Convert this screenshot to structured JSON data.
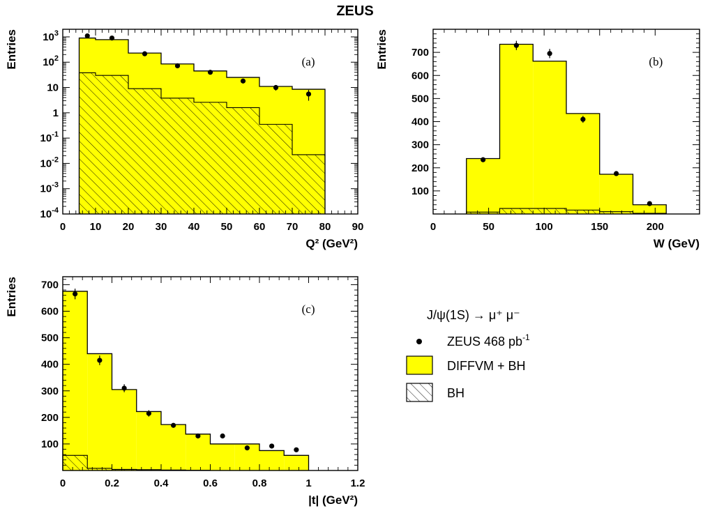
{
  "title": "ZEUS",
  "colors": {
    "mc_fill": "#ffff00",
    "outline": "#000000",
    "hatch": "#000000",
    "marker": "#000000"
  },
  "legend": {
    "header": "J/ψ(1S) → μ⁺ μ⁻",
    "items": [
      {
        "kind": "marker",
        "label": "ZEUS 468 pb",
        "sup": "-1"
      },
      {
        "kind": "fill",
        "label": "DIFFVM + BH"
      },
      {
        "kind": "hatch",
        "label": "BH"
      }
    ]
  },
  "chart_data": [
    {
      "type": "bar",
      "panel_label": "(a)",
      "xlabel": "Q² (GeV²)",
      "ylabel": "Entries",
      "yscale": "log",
      "xlim": [
        0,
        90
      ],
      "ylim": [
        0.0001,
        2000
      ],
      "xticks": [
        0,
        10,
        20,
        30,
        40,
        50,
        60,
        70,
        80,
        90
      ],
      "yticks": [
        {
          "v": 0.0001,
          "base": "10",
          "exp": "-4"
        },
        {
          "v": 0.001,
          "base": "10",
          "exp": "-3"
        },
        {
          "v": 0.01,
          "base": "10",
          "exp": "-2"
        },
        {
          "v": 0.1,
          "base": "10",
          "exp": "-1"
        },
        {
          "v": 1,
          "base": "1",
          "exp": ""
        },
        {
          "v": 10,
          "base": "10",
          "exp": ""
        },
        {
          "v": 100,
          "base": "10",
          "exp": "2"
        },
        {
          "v": 1000,
          "base": "10",
          "exp": "3"
        }
      ],
      "bin_edges": [
        5,
        10,
        20,
        30,
        40,
        50,
        60,
        70,
        80
      ],
      "series": [
        {
          "name": "DIFFVM + BH",
          "values": [
            900,
            780,
            230,
            85,
            45,
            25,
            11,
            8.5
          ]
        },
        {
          "name": "BH",
          "values": [
            38,
            30,
            9,
            3.8,
            2.6,
            1.6,
            0.35,
            0.022
          ]
        },
        {
          "name": "ZEUS 468 pb-1",
          "x": [
            7.5,
            15,
            25,
            35,
            45,
            55,
            65,
            75
          ],
          "values": [
            1100,
            900,
            215,
            72,
            40,
            18,
            10,
            5.5
          ],
          "err": [
            0,
            0,
            0,
            0,
            0,
            0,
            2.5,
            2.5
          ]
        }
      ]
    },
    {
      "type": "bar",
      "panel_label": "(b)",
      "xlabel": "W (GeV)",
      "ylabel": "Entries",
      "yscale": "linear",
      "xlim": [
        0,
        240
      ],
      "ylim": [
        0,
        800
      ],
      "xticks": [
        0,
        50,
        100,
        150,
        200
      ],
      "yticks": [
        100,
        200,
        300,
        400,
        500,
        600,
        700
      ],
      "bin_edges": [
        30,
        60,
        90,
        120,
        150,
        180,
        210
      ],
      "series": [
        {
          "name": "DIFFVM + BH",
          "values": [
            240,
            735,
            662,
            435,
            172,
            40
          ]
        },
        {
          "name": "BH",
          "values": [
            8,
            24,
            24,
            17,
            10,
            3
          ]
        },
        {
          "name": "ZEUS 468 pb-1",
          "x": [
            45,
            75,
            105,
            135,
            165,
            195
          ],
          "values": [
            235,
            730,
            695,
            410,
            175,
            45
          ],
          "err": [
            10,
            20,
            20,
            15,
            6,
            0
          ]
        }
      ]
    },
    {
      "type": "bar",
      "panel_label": "(c)",
      "xlabel": "|t| (GeV²)",
      "ylabel": "Entries",
      "yscale": "linear",
      "xlim": [
        0,
        1.2
      ],
      "ylim": [
        0,
        730
      ],
      "xticks": [
        0,
        0.2,
        0.4,
        0.6,
        0.8,
        1,
        1.2
      ],
      "yticks": [
        100,
        200,
        300,
        400,
        500,
        600,
        700
      ],
      "bin_edges": [
        0,
        0.1,
        0.2,
        0.3,
        0.4,
        0.5,
        0.6,
        0.7,
        0.8,
        0.9,
        1.0
      ],
      "series": [
        {
          "name": "DIFFVM + BH",
          "values": [
            675,
            440,
            305,
            222,
            173,
            137,
            100,
            100,
            75,
            57
          ]
        },
        {
          "name": "BH",
          "values": [
            57,
            8,
            4,
            3,
            2,
            1,
            0,
            0,
            0,
            0
          ]
        },
        {
          "name": "ZEUS 468 pb-1",
          "x": [
            0.05,
            0.15,
            0.25,
            0.35,
            0.45,
            0.55,
            0.65,
            0.75,
            0.85,
            0.95
          ],
          "values": [
            665,
            415,
            310,
            215,
            170,
            130,
            130,
            85,
            92,
            78
          ],
          "err": [
            20,
            18,
            15,
            12,
            8,
            6,
            0,
            0,
            0,
            0
          ]
        }
      ]
    }
  ]
}
